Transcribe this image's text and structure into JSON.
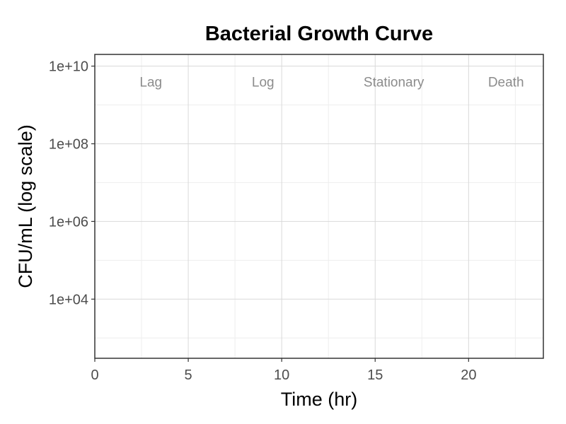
{
  "chart_data": {
    "type": "line",
    "title": "Bacterial Growth Curve",
    "xlabel": "Time (hr)",
    "ylabel": "CFU/mL (log scale)",
    "xlim": [
      0,
      24
    ],
    "ylim": [
      300,
      20000000000
    ],
    "y_scale": "log",
    "grid": true,
    "x_ticks": [
      {
        "value": 0,
        "label": "0"
      },
      {
        "value": 5,
        "label": "5"
      },
      {
        "value": 10,
        "label": "10"
      },
      {
        "value": 15,
        "label": "15"
      },
      {
        "value": 20,
        "label": "20"
      }
    ],
    "x_minor_ticks": [
      2.5,
      7.5,
      12.5,
      17.5,
      22.5
    ],
    "y_ticks": [
      {
        "value": 10000,
        "label": "1e+04"
      },
      {
        "value": 1000000,
        "label": "1e+06"
      },
      {
        "value": 100000000,
        "label": "1e+08"
      },
      {
        "value": 10000000000,
        "label": "1e+10"
      }
    ],
    "y_minor_ticks": [
      1000,
      100000,
      10000000,
      1000000000
    ],
    "annotations": [
      {
        "text": "Lag",
        "x": 3,
        "y": 4000000000
      },
      {
        "text": "Log",
        "x": 9,
        "y": 4000000000
      },
      {
        "text": "Stationary",
        "x": 16,
        "y": 4000000000
      },
      {
        "text": "Death",
        "x": 22,
        "y": 4000000000
      }
    ],
    "series": []
  },
  "colors": {
    "background": "#ffffff",
    "panel_border": "#333333",
    "grid_major": "#d9d9d9",
    "grid_minor": "#eeeeee",
    "tick_text": "#4d4d4d",
    "annotation_text": "#8c8c8c"
  }
}
